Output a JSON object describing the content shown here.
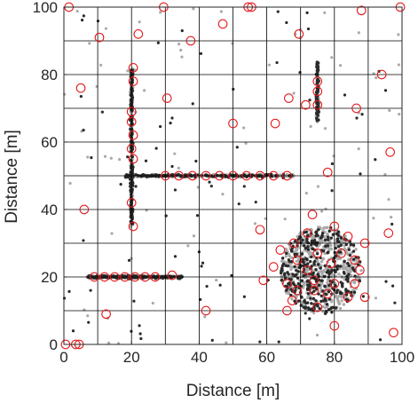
{
  "chart_data": {
    "type": "scatter",
    "title": "",
    "xlabel": "Distance [m]",
    "ylabel": "Distance [m]",
    "xlim": [
      0,
      100
    ],
    "ylim": [
      0,
      100
    ],
    "x_ticks": [
      0,
      20,
      40,
      60,
      80,
      100
    ],
    "y_ticks": [
      0,
      20,
      40,
      60,
      80,
      100
    ],
    "grid": true,
    "grid_spacing": 10,
    "colors": {
      "light_points": "#aaaaaa",
      "dark_points": "#2a2a2a",
      "markers": "#e41a1c",
      "grid": "#000000",
      "axes": "#262626"
    },
    "clusters": [
      {
        "shape": "vertical-line",
        "x": 20,
        "y_range": [
          35,
          82
        ]
      },
      {
        "shape": "horizontal-line",
        "y": 50,
        "x_range": [
          18,
          68
        ]
      },
      {
        "shape": "vertical-line",
        "x": 75,
        "y_range": [
          66,
          84
        ]
      },
      {
        "shape": "horizontal-line",
        "y": 20,
        "x_range": [
          7,
          35
        ]
      },
      {
        "shape": "blob",
        "center": [
          76,
          22
        ],
        "radius": [
          12,
          13
        ]
      }
    ],
    "series": [
      {
        "marker": "open circle",
        "points": [
          [
            1.5,
            100
          ],
          [
            29.5,
            100
          ],
          [
            54.5,
            100
          ],
          [
            55.5,
            100
          ],
          [
            88,
            99
          ],
          [
            99.5,
            100
          ],
          [
            10.5,
            91
          ],
          [
            22,
            92
          ],
          [
            37.5,
            90
          ],
          [
            47,
            95
          ],
          [
            69.5,
            92
          ],
          [
            94,
            80
          ],
          [
            5,
            76
          ],
          [
            20.5,
            82
          ],
          [
            20.5,
            78
          ],
          [
            30.5,
            73
          ],
          [
            66.5,
            73
          ],
          [
            71.5,
            71
          ],
          [
            75,
            78
          ],
          [
            75,
            75
          ],
          [
            75,
            71
          ],
          [
            86.5,
            70
          ],
          [
            20,
            69
          ],
          [
            20,
            66
          ],
          [
            50,
            65.5
          ],
          [
            62.5,
            65.5
          ],
          [
            20.5,
            62
          ],
          [
            20,
            58
          ],
          [
            20.5,
            55
          ],
          [
            96.5,
            57
          ],
          [
            30,
            50
          ],
          [
            34,
            50
          ],
          [
            38,
            50
          ],
          [
            42,
            50
          ],
          [
            46,
            50
          ],
          [
            50,
            50
          ],
          [
            54,
            50
          ],
          [
            58,
            50
          ],
          [
            62,
            50
          ],
          [
            66,
            50
          ],
          [
            78,
            51
          ],
          [
            20,
            42
          ],
          [
            6,
            40
          ],
          [
            20.5,
            35
          ],
          [
            73.5,
            38.5
          ],
          [
            58,
            34
          ],
          [
            96,
            33
          ],
          [
            80,
            35
          ],
          [
            72,
            33
          ],
          [
            68,
            30
          ],
          [
            84,
            32
          ],
          [
            89,
            30
          ],
          [
            64,
            28
          ],
          [
            75,
            27
          ],
          [
            82,
            27
          ],
          [
            69,
            25
          ],
          [
            79,
            24
          ],
          [
            86,
            25
          ],
          [
            62,
            23
          ],
          [
            72,
            22
          ],
          [
            87.5,
            22
          ],
          [
            9,
            20
          ],
          [
            12,
            20
          ],
          [
            15,
            20
          ],
          [
            18,
            20
          ],
          [
            21,
            20
          ],
          [
            24,
            20
          ],
          [
            27,
            20
          ],
          [
            32,
            20.5
          ],
          [
            59,
            19
          ],
          [
            66,
            18
          ],
          [
            74,
            19
          ],
          [
            80,
            18
          ],
          [
            86,
            18
          ],
          [
            69,
            16
          ],
          [
            74,
            16
          ],
          [
            78,
            15
          ],
          [
            84,
            14
          ],
          [
            89,
            14
          ],
          [
            67.5,
            13
          ],
          [
            75,
            11
          ],
          [
            66,
            10
          ],
          [
            12.5,
            9
          ],
          [
            42,
            10
          ],
          [
            80,
            5.5
          ],
          [
            97.5,
            3.5
          ],
          [
            0.5,
            0
          ],
          [
            3.5,
            0
          ],
          [
            4.5,
            0
          ]
        ]
      }
    ]
  }
}
